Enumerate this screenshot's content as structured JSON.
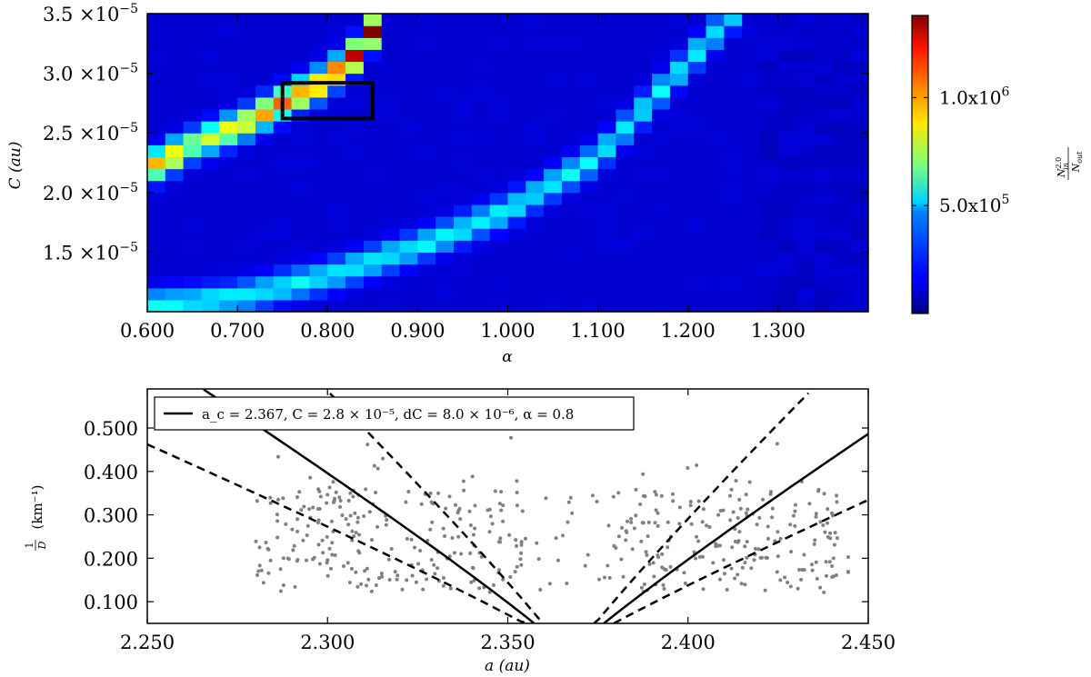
{
  "chart_data": [
    {
      "type": "heatmap",
      "xlabel": "α",
      "ylabel": "C (au)",
      "xlim": [
        0.6,
        1.4
      ],
      "ylim": [
        1e-05,
        3.5e-05
      ],
      "x_tick_labels": [
        "0.600",
        "0.700",
        "0.800",
        "0.900",
        "1.000",
        "1.100",
        "1.200",
        "1.300"
      ],
      "x_ticks": [
        0.6,
        0.7,
        0.8,
        0.9,
        1.0,
        1.1,
        1.2,
        1.3
      ],
      "y_tick_labels": [
        "1.5",
        "2.0",
        "2.5",
        "3.0",
        "3.5"
      ],
      "y_tick_exponent": "×10",
      "y_tick_power": "−5",
      "y_ticks": [
        1.5e-05,
        2e-05,
        2.5e-05,
        3e-05,
        3.5e-05
      ],
      "colorbar": {
        "label_num": "N",
        "label_sup": "2.0",
        "label_sub": "in",
        "label_den": "N",
        "label_den_sub": "out",
        "ticks": [
          {
            "value": 500000,
            "text": "5.0x10",
            "power": "5"
          },
          {
            "value": 1000000,
            "text": "1.0x10",
            "power": "6"
          }
        ],
        "vmin": 0,
        "vmax": 1380000
      },
      "highlight_box": {
        "alpha": [
          0.75,
          0.85
        ],
        "C": [
          2.62e-05,
          2.92e-05
        ]
      },
      "grid": {
        "nx": 40,
        "ny": 25,
        "ridges": [
          {
            "alpha": [
              0.6,
              0.65,
              0.7,
              0.75,
              0.8,
              0.83,
              0.86
            ],
            "C": [
              2.2e-05,
              2.4e-05,
              2.55e-05,
              2.75e-05,
              2.95e-05,
              3.15e-05,
              3.45e-05
            ],
            "width": 0.05,
            "peak": 1.0
          },
          {
            "alpha": [
              0.6,
              0.7,
              0.8,
              0.9,
              1.0,
              1.1,
              1.15,
              1.2,
              1.25
            ],
            "C": [
              1.05e-05,
              1.12e-05,
              1.3e-05,
              1.55e-05,
              1.85e-05,
              2.3e-05,
              2.7e-05,
              3.1e-05,
              3.5e-05
            ],
            "width": 0.05,
            "peak": 0.2
          }
        ]
      }
    },
    {
      "type": "scatter",
      "xlabel": "a (au)",
      "ylabel": "1/D (km⁻¹)",
      "ylabel_num": "1",
      "ylabel_den": "D",
      "ylabel_unit": "(km⁻¹)",
      "xlim": [
        2.25,
        2.45
      ],
      "ylim": [
        0.05,
        0.59
      ],
      "x_tick_labels": [
        "2.250",
        "2.300",
        "2.350",
        "2.400",
        "2.450"
      ],
      "x_ticks": [
        2.25,
        2.3,
        2.35,
        2.4,
        2.45
      ],
      "y_tick_labels": [
        "0.100",
        "0.200",
        "0.300",
        "0.400",
        "0.500"
      ],
      "y_ticks": [
        0.1,
        0.2,
        0.3,
        0.4,
        0.5
      ],
      "legend": {
        "placement": "top-left",
        "text": "a_c = 2.367,  C = 2.8 × 10⁻⁵,  dC = 8.0 × 10⁻⁶,  α = 0.8"
      },
      "params": {
        "a_c": 2.367,
        "C": 2.8e-05,
        "dC": 8e-06,
        "alpha": 0.8
      },
      "point_count": 520
    }
  ]
}
